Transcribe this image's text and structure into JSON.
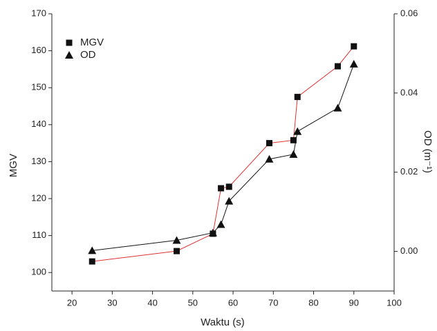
{
  "chart_data": {
    "type": "line",
    "x_label": "Waktu (s)",
    "y_label": "MGV",
    "y2_label": "OD (m⁻¹)",
    "xlim": [
      15,
      100
    ],
    "xticks": [
      20,
      30,
      40,
      50,
      60,
      70,
      80,
      90,
      100
    ],
    "ylim": [
      95,
      170
    ],
    "yticks": [
      100,
      110,
      120,
      130,
      140,
      150,
      160,
      170
    ],
    "y2lim": [
      -0.01,
      0.06
    ],
    "y2ticks": [
      {
        "value": 0,
        "label": "0.00"
      },
      0.02,
      0.04,
      0.06
    ],
    "legend": "upper left",
    "series": [
      {
        "name": "MGV",
        "marker": "square",
        "color": "#e03030",
        "marker_color": "#111111",
        "x": [
          25,
          46,
          55,
          57,
          59,
          69,
          75,
          76,
          86,
          90
        ],
        "values": [
          103,
          105.8,
          110.5,
          122.8,
          123.2,
          135,
          135.8,
          147.5,
          155.8,
          161.2
        ]
      },
      {
        "name": "OD",
        "marker": "triangle",
        "axis": "y2",
        "color": "#111111",
        "marker_color": "#111111",
        "x": [
          25,
          46,
          55,
          57,
          59,
          69,
          75,
          76,
          86,
          90
        ],
        "values": [
          0.0002,
          0.0028,
          0.0047,
          0.0068,
          0.0127,
          0.0233,
          0.0245,
          0.0303,
          0.0362,
          0.0473
        ]
      }
    ]
  }
}
